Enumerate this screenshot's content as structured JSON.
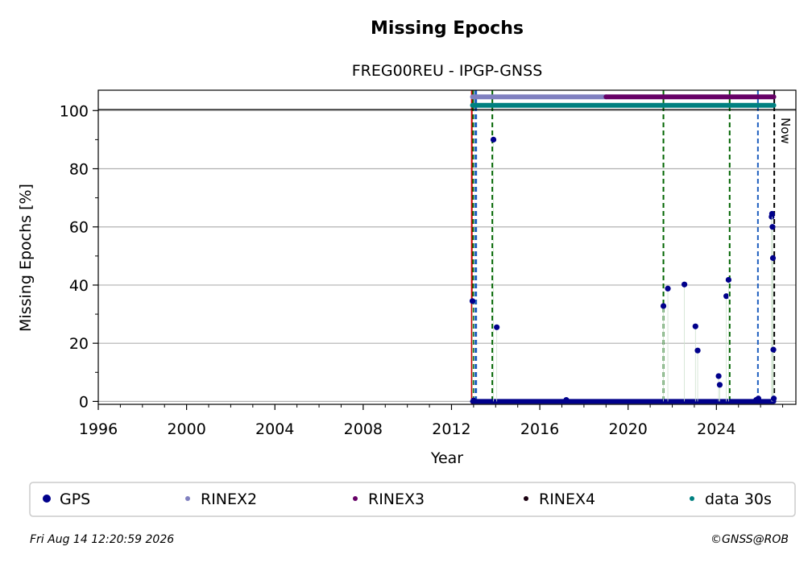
{
  "chart_data": {
    "type": "scatter",
    "title": "Missing Epochs",
    "subtitle": "FREG00REU - IPGP-GNSS",
    "xlabel": "Year",
    "ylabel": "Missing Epochs [%]",
    "xlim": [
      1996.0,
      2027.6
    ],
    "ylim": [
      -1,
      107
    ],
    "x_ticks": [
      1996,
      2000,
      2004,
      2008,
      2012,
      2016,
      2020,
      2024
    ],
    "y_ticks": [
      0,
      20,
      40,
      60,
      80,
      100
    ],
    "grid": "horizontal",
    "now_label": "Now",
    "now_x": 2026.62,
    "colors": {
      "gps": "#00008b",
      "rinex2": "#8080c0",
      "rinex3": "#660066",
      "rinex4": "#1a0010",
      "data30s": "#008080",
      "red_line": "#cc0000",
      "green_line": "#006400",
      "blue_line": "#1f5fbf",
      "grid": "#b0b0b0"
    },
    "vertical_lines": [
      {
        "x": 2012.92,
        "color": "red",
        "style": "solid"
      },
      {
        "x": 2012.98,
        "color": "green",
        "style": "dashed"
      },
      {
        "x": 2013.08,
        "color": "blue",
        "style": "dashed"
      },
      {
        "x": 2013.12,
        "color": "blue",
        "style": "dashed"
      },
      {
        "x": 2013.85,
        "color": "green",
        "style": "dashed"
      },
      {
        "x": 2021.6,
        "color": "green",
        "style": "dashed"
      },
      {
        "x": 2024.6,
        "color": "green",
        "style": "dashed"
      },
      {
        "x": 2025.88,
        "color": "blue",
        "style": "dashed"
      }
    ],
    "availability_bars": [
      {
        "name": "RINEX2",
        "start": 2012.95,
        "end": 2019.0,
        "y": 104.7
      },
      {
        "name": "RINEX3",
        "start": 2019.0,
        "end": 2026.6,
        "y": 104.7
      },
      {
        "name": "data 30s",
        "start": 2012.95,
        "end": 2026.6,
        "y": 101.8
      }
    ],
    "series": [
      {
        "name": "GPS",
        "x": [
          2012.95,
          2013.0,
          2013.9,
          2014.05,
          2017.2,
          2021.6,
          2021.8,
          2022.55,
          2023.05,
          2023.15,
          2024.1,
          2024.15,
          2024.45,
          2024.55,
          2025.8,
          2025.9,
          2026.5,
          2026.52,
          2026.54,
          2026.56,
          2026.58,
          2026.6
        ],
        "y": [
          34.5,
          0.3,
          90.0,
          25.5,
          0.5,
          32.8,
          38.8,
          40.2,
          25.8,
          17.5,
          8.7,
          5.7,
          36.2,
          41.8,
          0.5,
          1.0,
          63.5,
          64.5,
          60.0,
          49.3,
          17.8,
          1.0
        ]
      }
    ],
    "gps_baseline": {
      "start": 2012.95,
      "end": 2026.6,
      "y": 0
    }
  },
  "legend": {
    "items": [
      {
        "label": "GPS",
        "color": "#00008b"
      },
      {
        "label": "RINEX2",
        "color": "#8080c0"
      },
      {
        "label": "RINEX3",
        "color": "#660066"
      },
      {
        "label": "RINEX4",
        "color": "#1a0010"
      },
      {
        "label": "data 30s",
        "color": "#008080"
      }
    ]
  },
  "footer": {
    "timestamp": "Fri Aug 14 12:20:59 2026",
    "credit": "©GNSS@ROB"
  }
}
